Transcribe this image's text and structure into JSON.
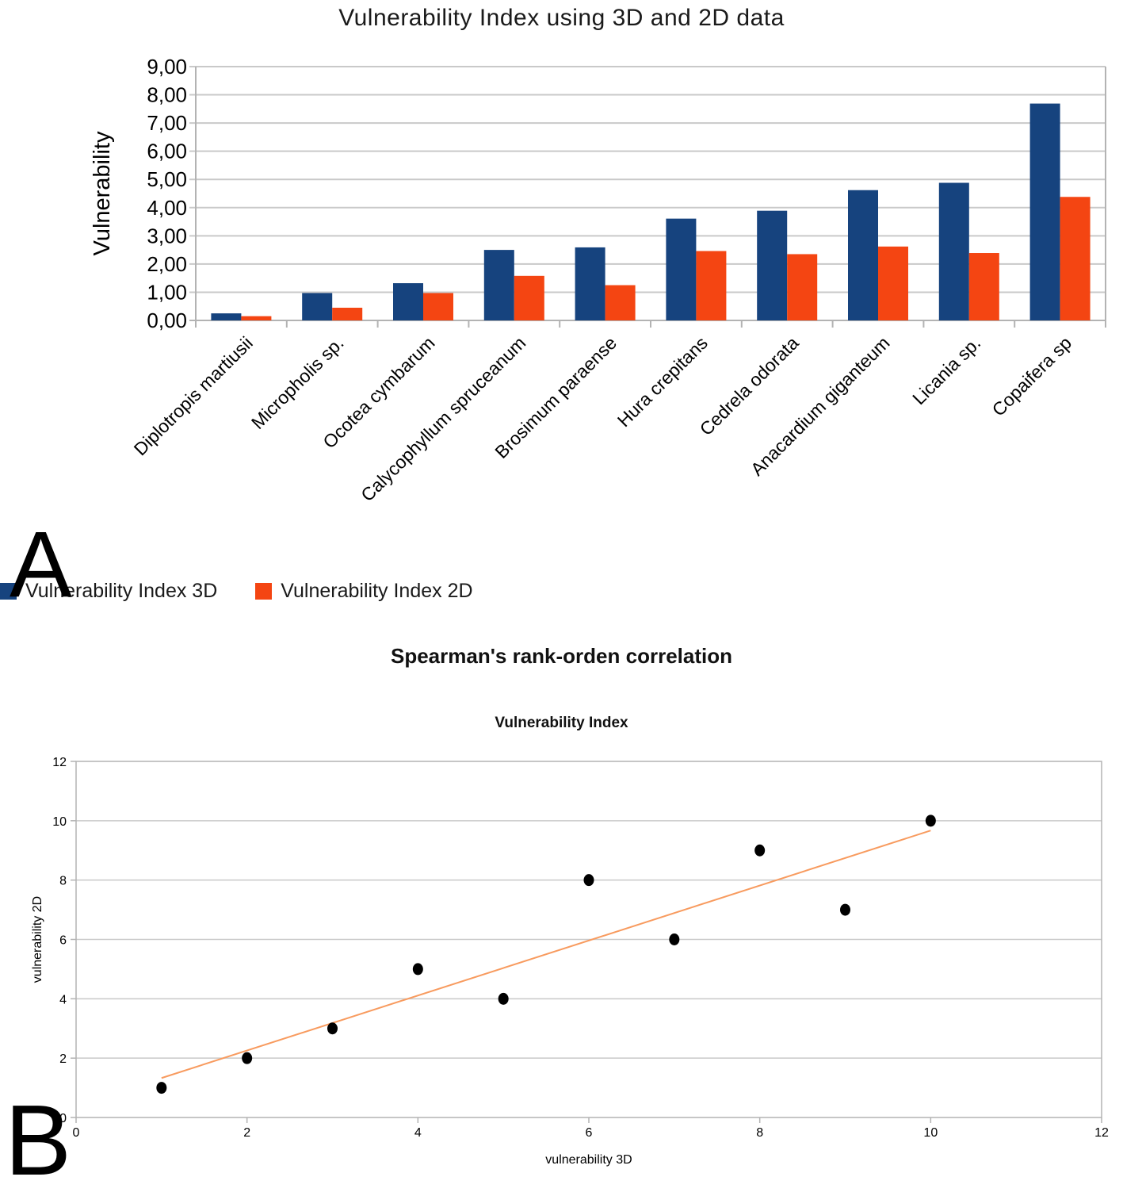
{
  "annotations": {
    "panel_a_letter": "A",
    "panel_b_letter": "B"
  },
  "chart_data": [
    {
      "type": "bar",
      "title": "Vulnerability Index using 3D and 2D data",
      "xlabel": "",
      "ylabel": "Vulnerability",
      "ylim": [
        0,
        9
      ],
      "grid": true,
      "legend_position": "bottom",
      "ytick_labels": [
        "0,00",
        "1,00",
        "2,00",
        "3,00",
        "4,00",
        "5,00",
        "6,00",
        "7,00",
        "8,00",
        "9,00"
      ],
      "categories": [
        "Diplotropis martiusii",
        "Micropholis sp.",
        "Ocotea cymbarum",
        "Calycophyllum spruceanum",
        "Brosimum paraense",
        "Hura crepitans",
        "Cedrela odorata",
        "Anacardium giganteum",
        "Licania sp.",
        "Copaifera sp"
      ],
      "series": [
        {
          "name": "Vulnerability Index 3D",
          "color": "#16437E",
          "values": [
            0.25,
            0.97,
            1.32,
            2.5,
            2.59,
            3.61,
            3.89,
            4.62,
            4.88,
            7.69
          ]
        },
        {
          "name": "Vulnerability Index 2D",
          "color": "#F44512",
          "values": [
            0.15,
            0.45,
            0.97,
            1.58,
            1.25,
            2.46,
            2.35,
            2.62,
            2.39,
            4.38
          ]
        }
      ]
    },
    {
      "type": "scatter",
      "title": "Spearman's rank-orden correlation",
      "subtitle": "Vulnerability Index",
      "xlabel": "vulnerability 3D",
      "ylabel": "vulnerability 2D",
      "xlim": [
        0,
        12
      ],
      "ylim": [
        0,
        12
      ],
      "xticks": [
        0,
        2,
        4,
        6,
        8,
        10,
        12
      ],
      "yticks": [
        0,
        2,
        4,
        6,
        8,
        10,
        12
      ],
      "grid": true,
      "point_color": "#000000",
      "points": [
        [
          1,
          1
        ],
        [
          2,
          2
        ],
        [
          3,
          3
        ],
        [
          4,
          5
        ],
        [
          5,
          4
        ],
        [
          6,
          8
        ],
        [
          7,
          6
        ],
        [
          8,
          9
        ],
        [
          9,
          7
        ],
        [
          10,
          10
        ]
      ],
      "trend_line": {
        "x1": 1,
        "y1": 1.33,
        "x2": 10,
        "y2": 9.67,
        "color": "#F89B5F"
      }
    }
  ]
}
